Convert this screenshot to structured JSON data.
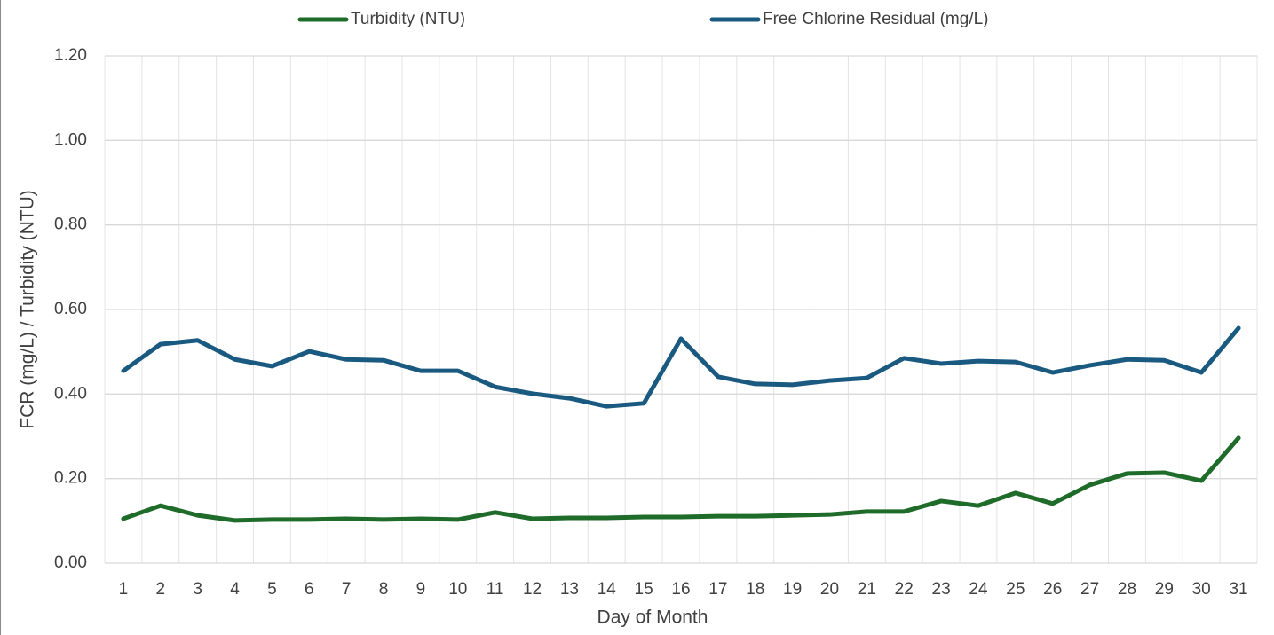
{
  "chart_data": {
    "type": "line",
    "x_label": "Day of Month",
    "y_label": "FCR (mg/L) / Turbidity (NTU)",
    "categories": [
      "1",
      "2",
      "3",
      "4",
      "5",
      "6",
      "7",
      "8",
      "9",
      "10",
      "11",
      "12",
      "13",
      "14",
      "15",
      "16",
      "17",
      "18",
      "19",
      "20",
      "21",
      "22",
      "23",
      "24",
      "25",
      "26",
      "27",
      "28",
      "29",
      "30",
      "31"
    ],
    "series": [
      {
        "name": "Turbidity (NTU)",
        "color": "#1e6b2a",
        "values": [
          0.105,
          0.136,
          0.113,
          0.101,
          0.103,
          0.103,
          0.105,
          0.103,
          0.105,
          0.103,
          0.12,
          0.105,
          0.107,
          0.107,
          0.109,
          0.109,
          0.111,
          0.111,
          0.113,
          0.115,
          0.122,
          0.122,
          0.147,
          0.136,
          0.166,
          0.141,
          0.185,
          0.212,
          0.214,
          0.195,
          0.296
        ]
      },
      {
        "name": "Free Chlorine Residual (mg/L)",
        "color": "#1a5a80",
        "values": [
          0.455,
          0.518,
          0.527,
          0.482,
          0.466,
          0.501,
          0.482,
          0.48,
          0.455,
          0.455,
          0.417,
          0.401,
          0.39,
          0.371,
          0.378,
          0.531,
          0.441,
          0.424,
          0.422,
          0.432,
          0.438,
          0.485,
          0.472,
          0.478,
          0.476,
          0.451,
          0.468,
          0.482,
          0.48,
          0.451,
          0.556
        ]
      }
    ],
    "ylim": [
      0,
      1.2
    ],
    "yticks": [
      {
        "value": 0,
        "label": "0.00"
      },
      {
        "value": 0.2,
        "label": "0.20"
      },
      {
        "value": 0.4,
        "label": "0.40"
      },
      {
        "value": 0.6,
        "label": "0.60"
      },
      {
        "value": 0.8,
        "label": "0.80"
      },
      {
        "value": 1.0,
        "label": "1.00"
      },
      {
        "value": 1.2,
        "label": "1.20"
      }
    ],
    "grid": true,
    "legend": "top"
  }
}
